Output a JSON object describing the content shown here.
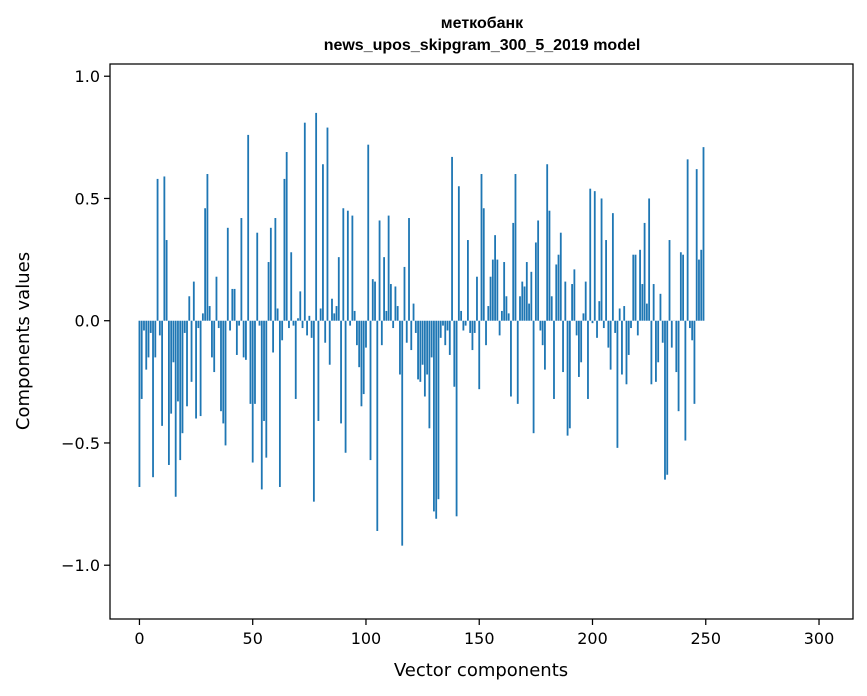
{
  "chart_data": {
    "type": "bar",
    "title": [
      "меткобанк",
      "news_upos_skipgram_300_5_2019 model"
    ],
    "xlabel": "Vector components",
    "ylabel": "Components values",
    "xlim": [
      -13,
      315
    ],
    "ylim": [
      -1.22,
      1.05
    ],
    "xticks": [
      0,
      50,
      100,
      150,
      200,
      250,
      300
    ],
    "yticks": [
      1.0,
      0.5,
      0.0,
      -0.5,
      -1.0
    ],
    "xtick_labels": [
      "0",
      "50",
      "100",
      "150",
      "200",
      "250",
      "300"
    ],
    "ytick_labels": [
      "1.0",
      "0.5",
      "0.0",
      "−0.5",
      "−1.0"
    ],
    "grid": false,
    "bar_color": "#1f77b4",
    "series": [
      {
        "values": [
          -0.68,
          -0.32,
          -0.04,
          -0.2,
          -0.15,
          -0.05,
          -0.64,
          -0.15,
          0.58,
          -0.06,
          -0.43,
          0.59,
          0.33,
          -0.59,
          -0.38,
          -0.17,
          -0.72,
          -0.33,
          -0.57,
          -0.46,
          -0.05,
          -0.35,
          0.1,
          -0.25,
          0.16,
          -0.4,
          -0.03,
          -0.39,
          0.03,
          0.46,
          0.6,
          0.06,
          -0.15,
          -0.21,
          0.18,
          -0.03,
          -0.37,
          -0.42,
          -0.51,
          0.38,
          -0.04,
          0.13,
          0.13,
          -0.14,
          -0.02,
          0.42,
          -0.15,
          -0.16,
          0.76,
          -0.34,
          -0.58,
          -0.34,
          0.36,
          -0.02,
          -0.69,
          -0.41,
          -0.56,
          0.24,
          0.38,
          -0.13,
          0.42,
          0.05,
          -0.68,
          -0.08,
          0.58,
          0.69,
          -0.03,
          0.28,
          -0.02,
          -0.32,
          0.01,
          0.12,
          -0.03,
          0.81,
          -0.06,
          0.02,
          -0.07,
          -0.74,
          0.85,
          -0.41,
          0.05,
          0.64,
          -0.09,
          0.79,
          -0.18,
          0.09,
          0.03,
          0.06,
          0.26,
          -0.42,
          0.46,
          -0.54,
          0.45,
          -0.02,
          0.43,
          0.04,
          -0.1,
          -0.19,
          -0.35,
          -0.3,
          -0.11,
          0.72,
          -0.57,
          0.17,
          0.16,
          -0.86,
          0.41,
          -0.1,
          0.26,
          0.04,
          0.43,
          0.15,
          -0.03,
          0.14,
          0.06,
          -0.22,
          -0.92,
          0.22,
          -0.09,
          0.42,
          -0.12,
          0.07,
          -0.05,
          -0.24,
          -0.25,
          -0.18,
          -0.31,
          -0.22,
          -0.44,
          -0.15,
          -0.78,
          -0.81,
          -0.73,
          -0.07,
          -0.02,
          -0.1,
          -0.04,
          -0.14,
          0.67,
          -0.27,
          -0.8,
          0.55,
          0.04,
          -0.04,
          -0.02,
          0.33,
          -0.05,
          -0.12,
          -0.05,
          0.18,
          -0.28,
          0.6,
          0.46,
          -0.1,
          0.06,
          0.18,
          0.25,
          0.35,
          0.25,
          -0.06,
          0.04,
          0.24,
          0.1,
          0.03,
          -0.31,
          0.4,
          0.6,
          -0.34,
          0.1,
          0.16,
          0.14,
          0.24,
          0.07,
          0.2,
          -0.46,
          0.32,
          0.41,
          -0.04,
          -0.1,
          -0.2,
          0.64,
          0.45,
          0.1,
          -0.32,
          0.23,
          0.27,
          0.36,
          -0.21,
          0.16,
          -0.47,
          -0.44,
          0.15,
          0.21,
          -0.06,
          -0.23,
          -0.17,
          0.03,
          0.16,
          -0.32,
          0.54,
          -0.01,
          0.53,
          -0.07,
          0.08,
          0.5,
          -0.03,
          0.33,
          -0.11,
          -0.2,
          0.44,
          -0.05,
          -0.52,
          0.05,
          -0.22,
          0.06,
          -0.26,
          -0.14,
          -0.03,
          0.27,
          0.27,
          -0.06,
          0.29,
          0.15,
          0.4,
          0.07,
          0.5,
          -0.26,
          0.15,
          -0.25,
          -0.17,
          0.11,
          -0.09,
          -0.65,
          -0.63,
          0.33,
          -0.11,
          0.0,
          -0.21,
          -0.37,
          0.28,
          0.27,
          -0.49,
          0.66,
          -0.03,
          -0.08,
          -0.34,
          0.62,
          0.25,
          0.29,
          0.71
        ]
      }
    ]
  }
}
